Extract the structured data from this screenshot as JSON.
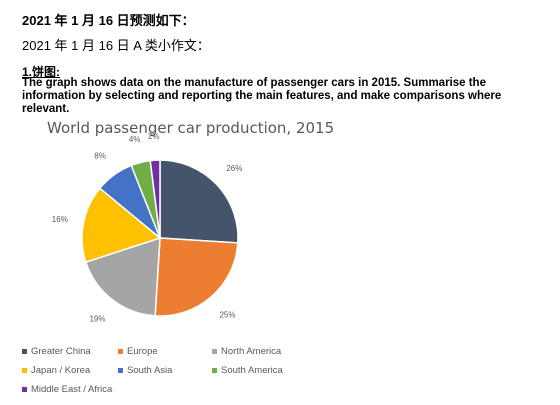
{
  "page": {
    "heading": "2021 年 1 月 16 日预测如下：",
    "subheading": "2021 年 1 月 16 日 A 类小作文：",
    "section_label": "1.饼图:",
    "prompt": "The graph shows data on the manufacture of passenger cars in 2015. Summarise the information by selecting and reporting the main features, and make comparisons where relevant."
  },
  "chart_data": {
    "type": "pie",
    "title": "World passenger car production, 2015",
    "categories": [
      "Greater China",
      "Europe",
      "North America",
      "Japan / Korea",
      "South Asia",
      "South America",
      "Middle East / Africa"
    ],
    "values": [
      26,
      25,
      19,
      16,
      8,
      4,
      2
    ],
    "labels": [
      "26%",
      "25%",
      "19%",
      "16%",
      "8%",
      "4%",
      "2%"
    ],
    "colors": [
      "#44546a",
      "#ed7d31",
      "#a5a5a5",
      "#ffc000",
      "#4472c4",
      "#70ad47",
      "#7030a0"
    ],
    "legend_position": "bottom"
  }
}
